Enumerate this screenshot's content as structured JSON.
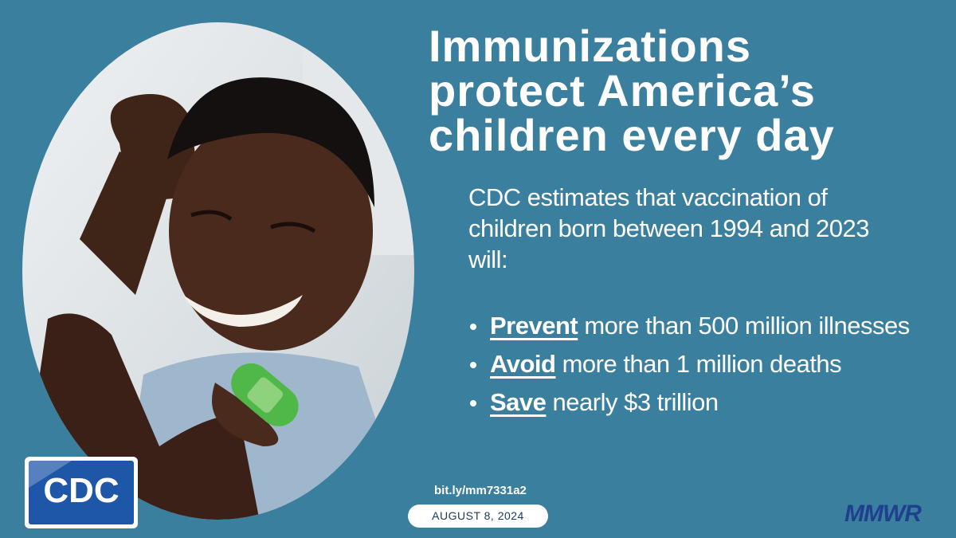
{
  "title_lines": [
    "Immunizations",
    "protect America’s",
    "children every day"
  ],
  "intro": "CDC estimates that vaccination of children born between 1994 and 2023 will:",
  "bullets": [
    {
      "emphasis": "Prevent",
      "text": "more than 500 million illnesses"
    },
    {
      "emphasis": "Avoid",
      "text": "more than 1 million deaths"
    },
    {
      "emphasis": "Save",
      "text": "nearly $3 trillion"
    }
  ],
  "link": "bit.ly/mm7331a2",
  "date": "AUGUST 8, 2024",
  "logo": "CDC",
  "publication": "MMWR"
}
